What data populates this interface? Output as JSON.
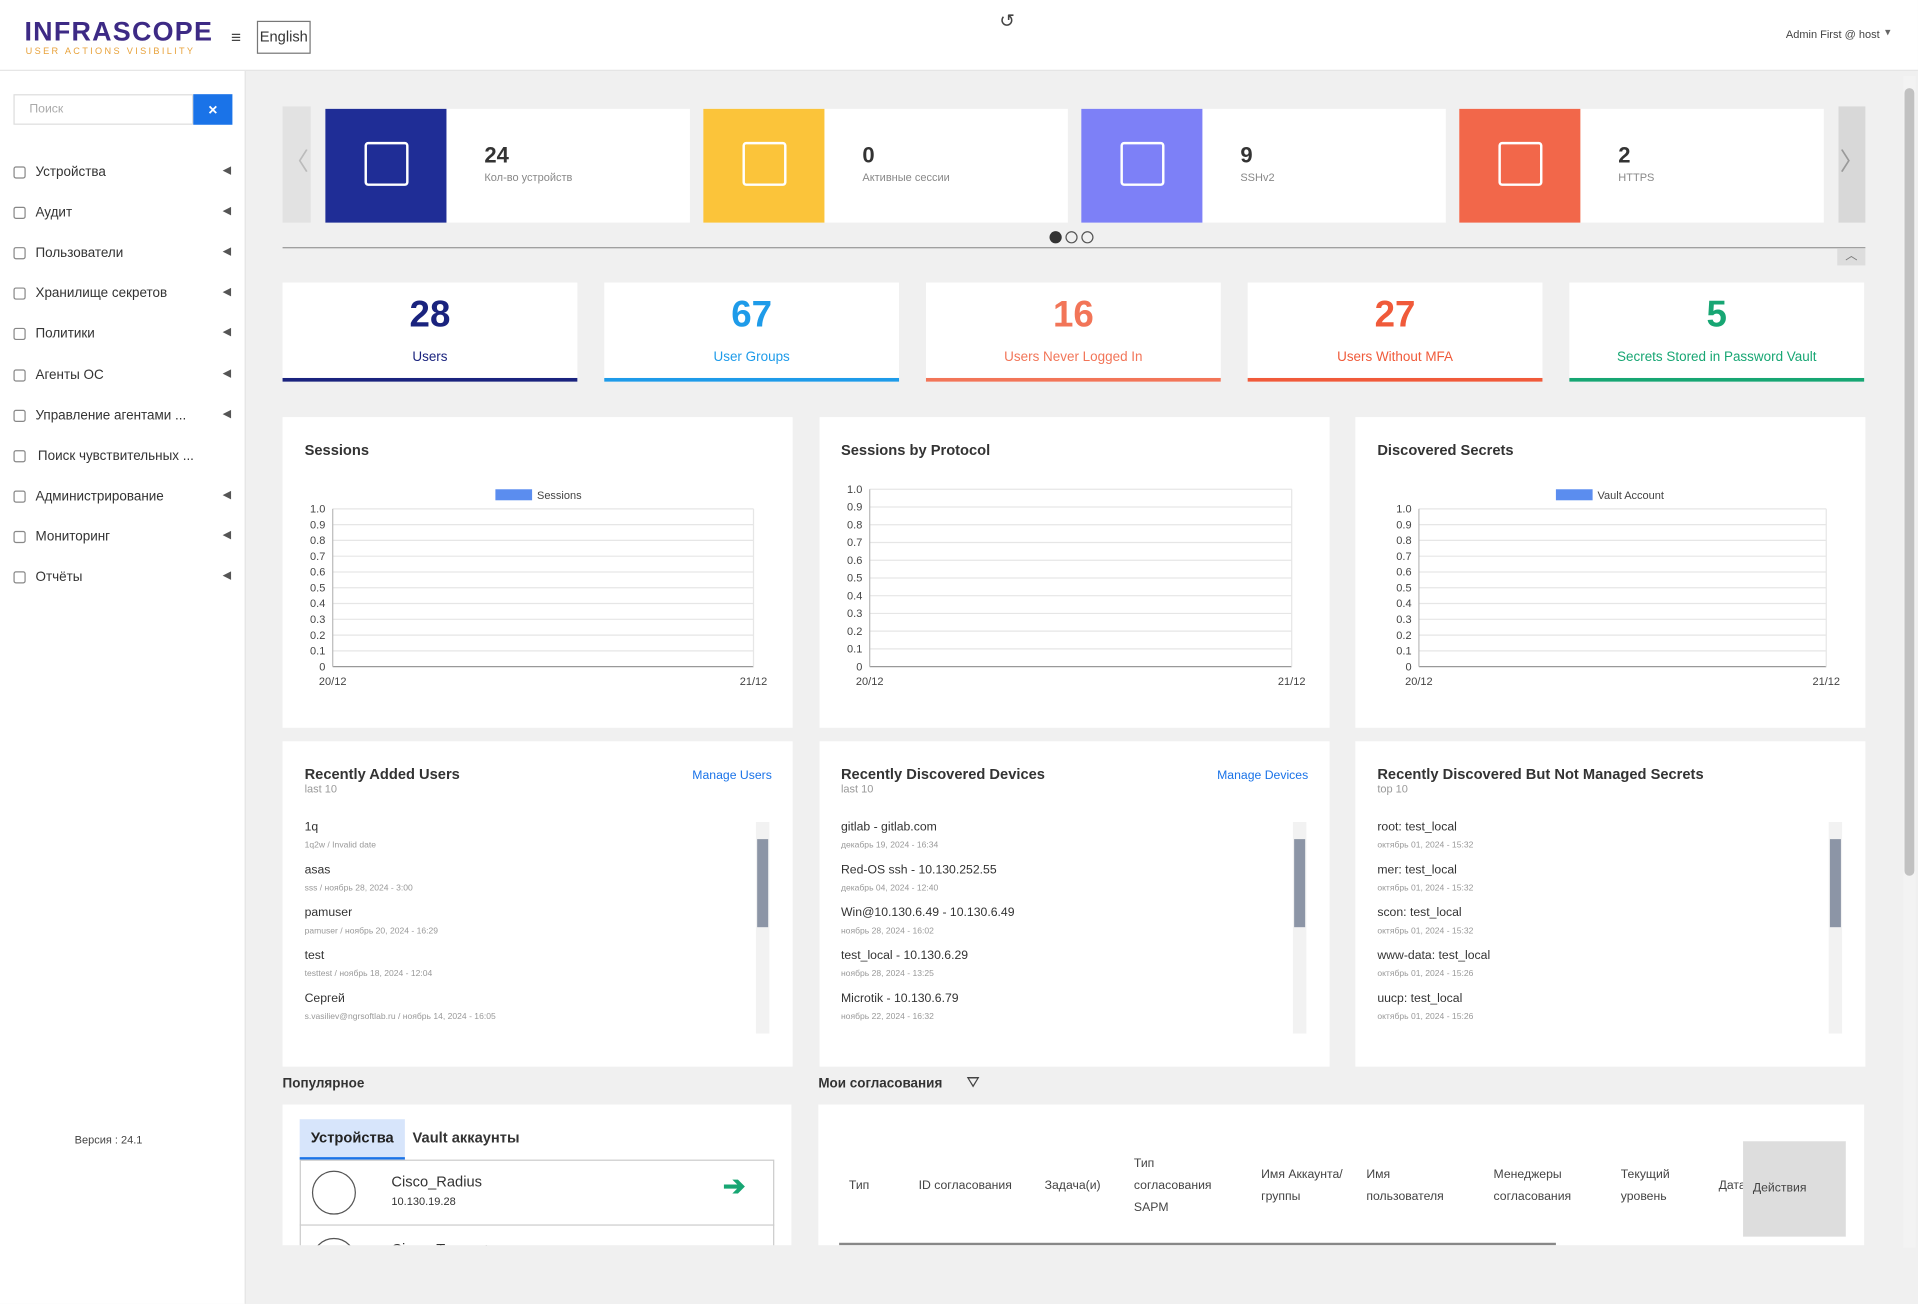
{
  "header": {
    "logo": "INFRASCOPE",
    "tagline": "USER ACTIONS VISIBILITY",
    "language": "English",
    "user": "Admin First @ host"
  },
  "sidebar": {
    "search_placeholder": "Поиск",
    "menu": [
      "Устройства",
      "Аудит",
      "Пользователи",
      "Хранилище секретов",
      "Политики",
      "Агенты ОС",
      "Управление агентами ...",
      "Поиск чувствительных ...",
      "Администрирование",
      "Мониторинг",
      "Отчёты"
    ],
    "version": "Версия : 24.1"
  },
  "tiles": [
    {
      "value": 24,
      "label": "Кол-во устройств"
    },
    {
      "value": 0,
      "label": "Активные сессии"
    },
    {
      "value": 9,
      "label": "SSHv2"
    },
    {
      "value": 2,
      "label": "HTTPS"
    }
  ],
  "stats": [
    {
      "value": 28,
      "label": "Users"
    },
    {
      "value": 67,
      "label": "User Groups"
    },
    {
      "value": 16,
      "label": "Users Never Logged In"
    },
    {
      "value": 27,
      "label": "Users Without MFA"
    },
    {
      "value": 5,
      "label": "Secrets Stored in Password Vault"
    }
  ],
  "charts": [
    {
      "title": "Sessions",
      "legend": "Sessions",
      "yticks": [
        "1.0",
        "0.9",
        "0.8",
        "0.7",
        "0.6",
        "0.5",
        "0.4",
        "0.3",
        "0.2",
        "0.1",
        "0"
      ],
      "xticks": [
        "20/12",
        "21/12"
      ]
    },
    {
      "title": "Sessions by Protocol",
      "yticks": [
        "1.0",
        "0.9",
        "0.8",
        "0.7",
        "0.6",
        "0.5",
        "0.4",
        "0.3",
        "0.2",
        "0.1",
        "0"
      ],
      "xticks": [
        "20/12",
        "21/12"
      ]
    },
    {
      "title": "Discovered Secrets",
      "legend": "Vault Account",
      "yticks": [
        "1.0",
        "0.9",
        "0.8",
        "0.7",
        "0.6",
        "0.5",
        "0.4",
        "0.3",
        "0.2",
        "0.1",
        "0"
      ],
      "xticks": [
        "20/12",
        "21/12"
      ]
    }
  ],
  "lists": [
    {
      "title": "Recently Added Users",
      "subtitle": "last 10",
      "link": "Manage Users",
      "items": [
        {
          "name": "1q",
          "meta": "1q2w / Invalid date"
        },
        {
          "name": "asas",
          "meta": "sss / ноябрь 28, 2024 - 3:00"
        },
        {
          "name": "pamuser",
          "meta": "pamuser / ноябрь 20, 2024 - 16:29"
        },
        {
          "name": "test",
          "meta": "testtest / ноябрь 18, 2024 - 12:04"
        },
        {
          "name": "Сергей",
          "meta": "s.vasiliev@ngrsoftlab.ru / ноябрь 14, 2024 - 16:05"
        }
      ]
    },
    {
      "title": "Recently Discovered Devices",
      "subtitle": "last 10",
      "link": "Manage Devices",
      "items": [
        {
          "name": "gitlab - gitlab.com",
          "meta": "декабрь 19, 2024 - 16:34"
        },
        {
          "name": "Red-OS ssh - 10.130.252.55",
          "meta": "декабрь 04, 2024 - 12:40"
        },
        {
          "name": "Win@10.130.6.49 - 10.130.6.49",
          "meta": "ноябрь 28, 2024 - 16:02"
        },
        {
          "name": "test_local - 10.130.6.29",
          "meta": "ноябрь 28, 2024 - 13:25"
        },
        {
          "name": "Microtik - 10.130.6.79",
          "meta": "ноябрь 22, 2024 - 16:32"
        }
      ]
    },
    {
      "title": "Recently Discovered But Not Managed Secrets",
      "subtitle": "top 10",
      "items": [
        {
          "name": "root: test_local",
          "meta": "октябрь 01, 2024 - 15:32"
        },
        {
          "name": "mer: test_local",
          "meta": "октябрь 01, 2024 - 15:32"
        },
        {
          "name": "scon: test_local",
          "meta": "октябрь 01, 2024 - 15:32"
        },
        {
          "name": "www-data: test_local",
          "meta": "октябрь 01, 2024 - 15:26"
        },
        {
          "name": "uucp: test_local",
          "meta": "октябрь 01, 2024 - 15:26"
        }
      ]
    }
  ],
  "popular": {
    "title": "Популярное",
    "tabs": [
      "Устройства",
      "Vault аккаунты"
    ],
    "items": [
      {
        "name": "Cisco_Radius",
        "ip": "10.130.19.28"
      },
      {
        "name": "Cisco_Tacacs+"
      }
    ]
  },
  "approvals": {
    "title": "Мои согласования",
    "columns": [
      "Тип",
      "ID согласования",
      "Задача(и)",
      "Тип согласования SAPM",
      "Имя Аккаунта/ группы",
      "Имя пользователя",
      "Менеджеры согласования",
      "Текущий уровень",
      "Дата",
      "Действия"
    ]
  }
}
